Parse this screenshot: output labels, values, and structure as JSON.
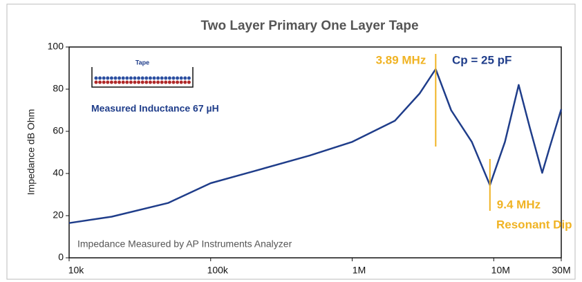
{
  "chart_data": {
    "type": "line",
    "title": "Two Layer Primary One Layer Tape",
    "y_label": "Impedance dB Ohm",
    "log_x": true,
    "xlim": [
      10000,
      30000000
    ],
    "xticks": [
      {
        "value": 10000,
        "label": "10k"
      },
      {
        "value": 100000,
        "label": "100k"
      },
      {
        "value": 1000000,
        "label": "1M"
      },
      {
        "value": 10000000,
        "label": "10M"
      },
      {
        "value": 30000000,
        "label": "30M"
      }
    ],
    "ylim": [
      0,
      100
    ],
    "yticks": [
      0,
      20,
      40,
      60,
      80,
      100
    ],
    "x": [
      10000,
      20000,
      50000,
      100000,
      200000,
      500000,
      1000000,
      2000000,
      3000000,
      3890000,
      5000000,
      7000000,
      9400000,
      12000000,
      15000000,
      18000000,
      22000000,
      25000000,
      30000000
    ],
    "series": [
      {
        "color": "#1f3d8a",
        "values": [
          16.5,
          19.5,
          26,
          35.4,
          41,
          48.5,
          55,
          65,
          78,
          89.5,
          70,
          55,
          34.5,
          55,
          82,
          61.6,
          40.3,
          53,
          70.5
        ]
      }
    ],
    "annotation_color": "#f0b323",
    "markers": [
      {
        "label": "3.89 MHz",
        "x": 3890000
      },
      {
        "label": "9.4 MHz",
        "x": 9400000
      }
    ],
    "notes": {
      "capacitance": "Cp = 25 pF",
      "dip": "Resonant Dip",
      "inductance": "Measured Inductance 67 µH",
      "source": "Impedance Measured by AP Instruments Analyzer",
      "inset": "Tape"
    }
  }
}
